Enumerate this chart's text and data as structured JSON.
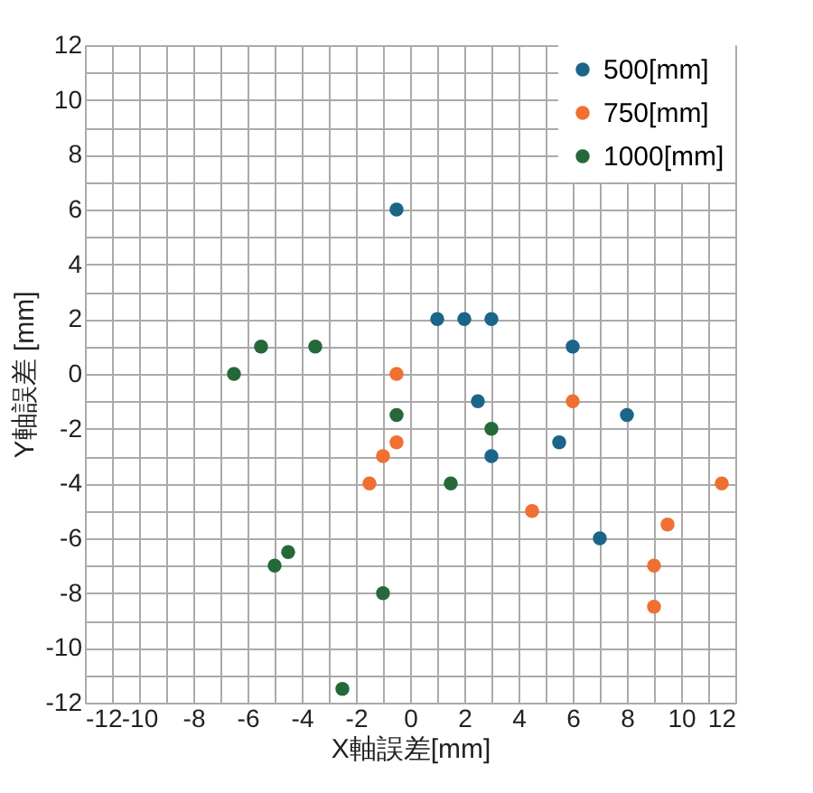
{
  "chart_data": {
    "type": "scatter",
    "xlabel": "X軸誤差[mm]",
    "ylabel": "Y軸誤差 [mm]",
    "xlim": [
      -12,
      12
    ],
    "ylim": [
      -12,
      12
    ],
    "xticks": [
      -12,
      {
        "value": -11,
        "label": null
      },
      -10,
      {
        "value": -9,
        "label": null
      },
      -8,
      {
        "value": -7,
        "label": null
      },
      -6,
      {
        "value": -5,
        "label": null
      },
      -4,
      {
        "value": -3,
        "label": null
      },
      -2,
      {
        "value": -1,
        "label": null
      },
      0,
      {
        "value": 1,
        "label": null
      },
      2,
      {
        "value": 3,
        "label": null
      },
      4,
      {
        "value": 5,
        "label": null
      },
      6,
      {
        "value": 7,
        "label": null
      },
      8,
      {
        "value": 9,
        "label": null
      },
      10,
      {
        "value": 11,
        "label": null
      },
      12
    ],
    "yticks": [
      -12,
      {
        "value": -11,
        "label": null
      },
      -10,
      {
        "value": -9,
        "label": null
      },
      -8,
      {
        "value": -7,
        "label": null
      },
      -6,
      {
        "value": -5,
        "label": null
      },
      -4,
      {
        "value": -3,
        "label": null
      },
      -2,
      {
        "value": -1,
        "label": null
      },
      0,
      {
        "value": 1,
        "label": null
      },
      2,
      {
        "value": 3,
        "label": null
      },
      4,
      {
        "value": 5,
        "label": null
      },
      6,
      {
        "value": 7,
        "label": null
      },
      8,
      {
        "value": 9,
        "label": null
      },
      10,
      {
        "value": 11,
        "label": null
      },
      12
    ],
    "grid": true,
    "legend": "top right",
    "marker": "circle",
    "series": [
      {
        "name": "500[mm]",
        "color": "#1b6589",
        "x": [
          -0.5,
          1,
          2,
          3,
          6,
          2.5,
          3,
          5.5,
          8,
          7
        ],
        "values": [
          6,
          2,
          2,
          2,
          1,
          -1,
          -3,
          -2.5,
          -1.5,
          -6
        ]
      },
      {
        "name": "750[mm]",
        "color": "#ef7032",
        "x": [
          -0.5,
          -0.5,
          -1,
          -1.5,
          6,
          4.5,
          9.5,
          9,
          9,
          11.5
        ],
        "values": [
          0,
          -2.5,
          -3,
          -4,
          -1,
          -5,
          -5.5,
          -7,
          -8.5,
          -4
        ]
      },
      {
        "name": "1000[mm]",
        "color": "#25693a",
        "x": [
          -6.5,
          -5.5,
          -3.5,
          -0.5,
          3,
          1.5,
          -4.5,
          -5,
          -1,
          -2.5
        ],
        "values": [
          0,
          1,
          1,
          -1.5,
          -2,
          -4,
          -6.5,
          -7,
          -8,
          -11.5
        ]
      }
    ]
  }
}
